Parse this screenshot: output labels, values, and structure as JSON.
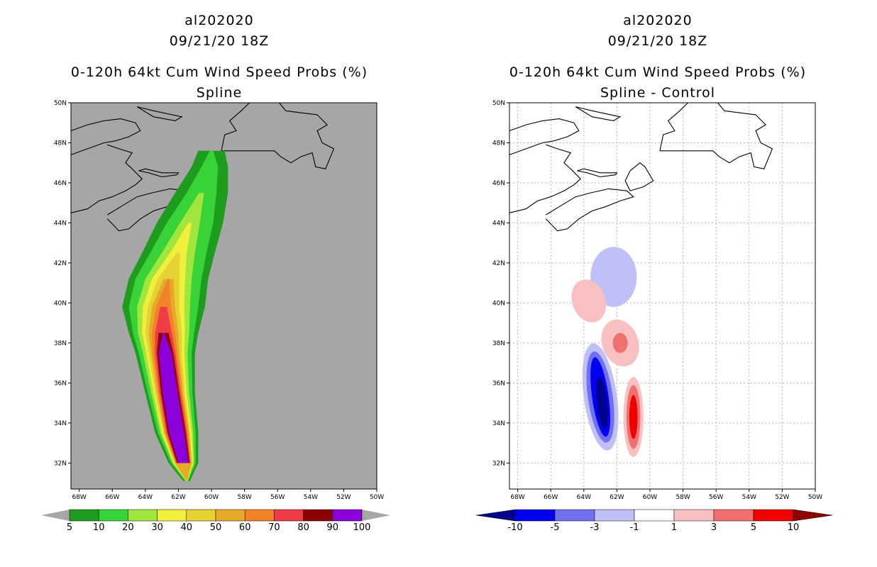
{
  "chart_data": [
    {
      "type": "heatmap",
      "storm_id": "al202020",
      "datetime": "09/21/20 18Z",
      "title": "0-120h 64kt Cum Wind Speed Probs (%)",
      "subtitle": "Spline",
      "x_ticks": [
        "68W",
        "66W",
        "64W",
        "62W",
        "60W",
        "58W",
        "56W",
        "54W",
        "52W",
        "50W"
      ],
      "y_ticks": [
        "50N",
        "48N",
        "46N",
        "44N",
        "42N",
        "40N",
        "38N",
        "36N",
        "34N",
        "32N"
      ],
      "xlim": [
        -68.5,
        -50
      ],
      "ylim": [
        30.7,
        50
      ],
      "grid": false,
      "background_color": "#a6a6a6",
      "colorbar_labels": [
        "5",
        "10",
        "20",
        "30",
        "40",
        "50",
        "60",
        "70",
        "80",
        "90",
        "100"
      ],
      "colorbar_colors": [
        "#1e9c1e",
        "#37d337",
        "#a0e63c",
        "#f0f03c",
        "#e6d232",
        "#e6aa28",
        "#f08228",
        "#f03c46",
        "#8c0000",
        "#8c00dc"
      ],
      "contour_levels": [
        5,
        10,
        20,
        30,
        40,
        50,
        60,
        70,
        80,
        90
      ]
    },
    {
      "type": "heatmap",
      "storm_id": "al202020",
      "datetime": "09/21/20 18Z",
      "title": "0-120h 64kt Cum Wind Speed Probs (%)",
      "subtitle": "Spline - Control",
      "x_ticks": [
        "68W",
        "66W",
        "64W",
        "62W",
        "60W",
        "58W",
        "56W",
        "54W",
        "52W",
        "50W"
      ],
      "y_ticks": [
        "50N",
        "48N",
        "46N",
        "44N",
        "42N",
        "40N",
        "38N",
        "36N",
        "34N",
        "32N"
      ],
      "xlim": [
        -68.5,
        -50
      ],
      "ylim": [
        30.7,
        50
      ],
      "grid": true,
      "background_color": "#ffffff",
      "colorbar_labels": [
        "-10",
        "-5",
        "-3",
        "-1",
        "1",
        "3",
        "5",
        "10"
      ],
      "colorbar_colors": [
        "#00008c",
        "#0000f0",
        "#7070f0",
        "#c0c0f8",
        "#ffffff",
        "#f8c0c0",
        "#f07070",
        "#f00000",
        "#8c0000"
      ],
      "anomalies": [
        {
          "name": "negative-core",
          "center": [
            -63.0,
            35.3
          ],
          "max_value": -10
        },
        {
          "name": "negative-north",
          "center": [
            -62.2,
            41.3
          ],
          "max_value": -3
        },
        {
          "name": "positive-south",
          "center": [
            -61.0,
            34.3
          ],
          "max_value": 10
        },
        {
          "name": "positive-mid",
          "center": [
            -61.8,
            38.0
          ],
          "max_value": 5
        },
        {
          "name": "positive-north",
          "center": [
            -63.7,
            40.1
          ],
          "max_value": 3
        }
      ]
    }
  ]
}
